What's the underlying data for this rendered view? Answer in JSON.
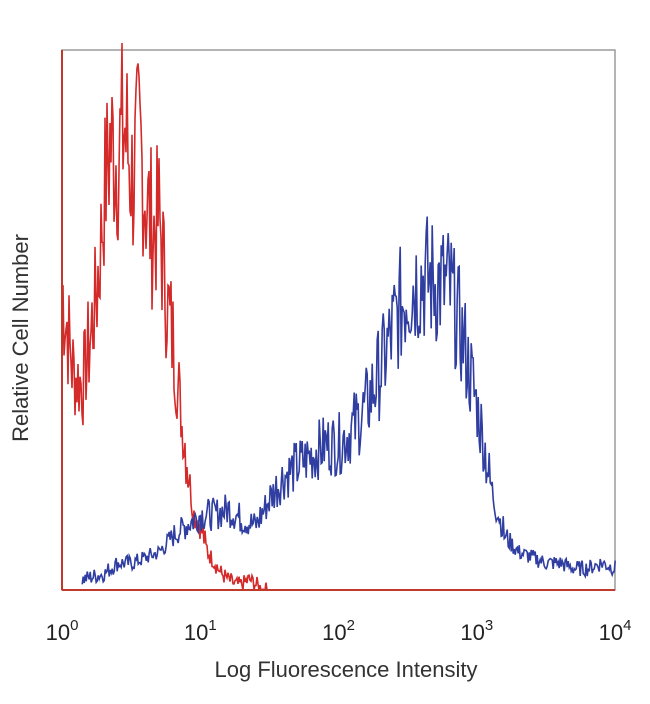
{
  "chart_data": {
    "type": "line",
    "title": "",
    "xlabel": "Log Fluorescence Intensity",
    "ylabel": "Relative Cell Number",
    "x_scale": "log",
    "xlim": [
      1,
      10000
    ],
    "ylim": [
      0,
      100
    ],
    "grid": false,
    "x_ticks": [
      {
        "base": "10",
        "exp": "0"
      },
      {
        "base": "10",
        "exp": "1"
      },
      {
        "base": "10",
        "exp": "2"
      },
      {
        "base": "10",
        "exp": "3"
      },
      {
        "base": "10",
        "exp": "4"
      }
    ],
    "series": [
      {
        "color": "#d42a2a",
        "x": [
          1.0,
          1.2,
          1.4,
          1.6,
          1.8,
          2.0,
          2.2,
          2.5,
          2.8,
          3.2,
          3.6,
          4.0,
          4.5,
          5.0,
          5.6,
          6.3,
          7.1,
          8.0,
          9.0,
          10.0,
          11.2,
          12.6,
          14.1,
          15.8,
          17.8,
          20.0,
          22.4,
          25.1,
          28.2,
          31.6
        ],
        "y": [
          55,
          40,
          38,
          47,
          57,
          73,
          83,
          80,
          86,
          76,
          83,
          73,
          66,
          69,
          55,
          46,
          34,
          23,
          14,
          12,
          7,
          5,
          3,
          2,
          1,
          1,
          2,
          1,
          0,
          0
        ]
      },
      {
        "color": "#2f3ea0",
        "x": [
          1.4,
          2.0,
          2.5,
          3.2,
          4.0,
          5.0,
          6.3,
          7.9,
          10.0,
          12.6,
          15.8,
          20.0,
          25.1,
          31.6,
          39.8,
          50.1,
          63.1,
          79.4,
          100,
          126,
          158,
          200,
          251,
          316,
          398,
          501,
          631,
          794,
          1000,
          1259,
          1585,
          1995,
          2512,
          3162,
          3981,
          5012,
          6310,
          7943,
          10000
        ],
        "y": [
          2,
          3,
          5,
          5,
          6,
          7,
          10,
          12,
          14,
          14,
          15,
          13,
          12,
          17,
          21,
          23,
          25,
          27,
          27,
          30,
          34,
          41,
          49,
          56,
          58,
          57,
          56,
          46,
          34,
          19,
          10,
          7,
          6,
          5,
          5,
          4,
          4,
          5,
          4
        ]
      }
    ]
  }
}
